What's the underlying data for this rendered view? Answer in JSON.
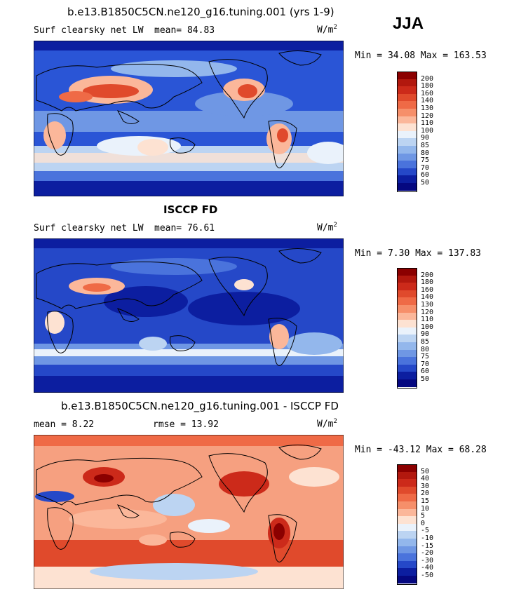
{
  "season": "JJA",
  "panels": [
    {
      "title": "b.e13.B1850C5CN.ne120_g16.tuning.001 (yrs 1-9)",
      "left_label": "Surf clearsky net LW",
      "mean_label": "mean=  84.83",
      "unit_base": "W/m",
      "unit_exp": "2",
      "minmax": "Min =  34.08 Max = 163.53",
      "levels": [
        "200",
        "180",
        "160",
        "140",
        "130",
        "120",
        "110",
        "100",
        "90",
        "85",
        "80",
        "75",
        "70",
        "60",
        "50"
      ],
      "colors": [
        "#8b0000",
        "#b2180e",
        "#cc2a1a",
        "#e04a2c",
        "#ef6a46",
        "#f68f6a",
        "#fbb79a",
        "#fde2d2",
        "#eaf2fb",
        "#bcd4f2",
        "#93b7ec",
        "#6f97e4",
        "#4a73dc",
        "#2548c8",
        "#0c1ea0",
        "#050880"
      ],
      "base_color": "#2a55d6"
    },
    {
      "title": "ISCCP FD",
      "left_label": "Surf clearsky net LW",
      "mean_label": "mean=  76.61",
      "unit_base": "W/m",
      "unit_exp": "2",
      "minmax": "Min =   7.30 Max = 137.83",
      "levels": [
        "200",
        "180",
        "160",
        "140",
        "130",
        "120",
        "110",
        "100",
        "90",
        "85",
        "80",
        "75",
        "70",
        "60",
        "50"
      ],
      "colors": [
        "#8b0000",
        "#b2180e",
        "#cc2a1a",
        "#e04a2c",
        "#ef6a46",
        "#f68f6a",
        "#fbb79a",
        "#fde2d2",
        "#eaf2fb",
        "#bcd4f2",
        "#93b7ec",
        "#6f97e4",
        "#4a73dc",
        "#2548c8",
        "#0c1ea0",
        "#050880"
      ],
      "base_color": "#1e3fc4"
    },
    {
      "title": "b.e13.B1850C5CN.ne120_g16.tuning.001 - ISCCP FD",
      "left_label": "mean =   8.22",
      "mean_label": "rmse =  13.92",
      "unit_base": "W/m",
      "unit_exp": "2",
      "minmax": "Min = -43.12 Max =  68.28",
      "levels": [
        "50",
        "40",
        "30",
        "20",
        "15",
        "10",
        "5",
        "0",
        "-5",
        "-10",
        "-15",
        "-20",
        "-30",
        "-40",
        "-50"
      ],
      "colors": [
        "#8b0000",
        "#b2180e",
        "#cc2a1a",
        "#e04a2c",
        "#ef6a46",
        "#f68f6a",
        "#fbb79a",
        "#fde2d2",
        "#eaf2fb",
        "#bcd4f2",
        "#93b7ec",
        "#6f97e4",
        "#4a73dc",
        "#2548c8",
        "#0c1ea0",
        "#050880"
      ],
      "base_color": "#f6a080"
    }
  ]
}
